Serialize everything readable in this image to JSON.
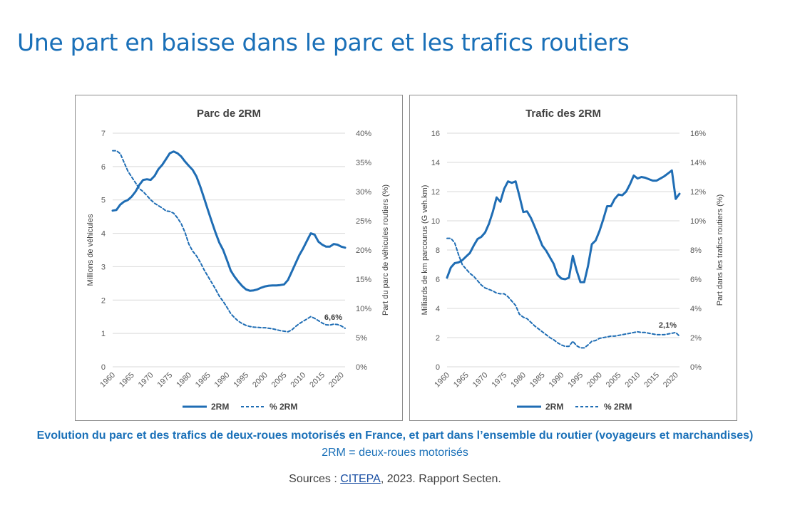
{
  "page": {
    "title": "Une part en baisse dans le parc et les trafics routiers",
    "caption": "Evolution du parc et des trafics de deux-roues motorisés en France, et part dans l’ensemble du routier (voyageurs et marchandises)",
    "caption_sub": "2RM = deux-roues motorisés",
    "sources_prefix": "Sources : ",
    "sources_link": "CITEPA",
    "sources_suffix": ", 2023. Rapport Secten."
  },
  "colors": {
    "accent": "#1a70b8",
    "series": "#1f6db4",
    "grid": "#d9d9d9",
    "axis_text": "#595959"
  },
  "chart_data": [
    {
      "type": "line",
      "title": "Parc de 2RM",
      "ylabel": "Millions de véhicules",
      "y2label": "Part du parc de véhicules routiers (%)",
      "xlabel": "",
      "xlim": [
        1960,
        2021
      ],
      "ylim": [
        0,
        7
      ],
      "y2lim": [
        0,
        40
      ],
      "x_ticks": [
        1960,
        1965,
        1970,
        1975,
        1980,
        1985,
        1990,
        1995,
        2000,
        2005,
        2010,
        2015,
        2020
      ],
      "y_ticks": [
        "0",
        "1",
        "2",
        "3",
        "4",
        "5",
        "6",
        "7"
      ],
      "y2_ticks": [
        "0%",
        "5%",
        "10%",
        "15%",
        "20%",
        "25%",
        "30%",
        "35%",
        "40%"
      ],
      "grid": true,
      "legend": [
        "2RM",
        "% 2RM"
      ],
      "annotation": {
        "label": "6,6%",
        "series": "% 2RM",
        "x": 2021
      },
      "series": [
        {
          "name": "2RM",
          "axis": "left",
          "style": "solid",
          "x": [
            1960,
            1961,
            1962,
            1963,
            1964,
            1965,
            1966,
            1967,
            1968,
            1969,
            1970,
            1971,
            1972,
            1973,
            1974,
            1975,
            1976,
            1977,
            1978,
            1979,
            1980,
            1981,
            1982,
            1983,
            1984,
            1985,
            1986,
            1987,
            1988,
            1989,
            1990,
            1991,
            1992,
            1993,
            1994,
            1995,
            1996,
            1997,
            1998,
            1999,
            2000,
            2001,
            2002,
            2003,
            2004,
            2005,
            2006,
            2007,
            2008,
            2009,
            2010,
            2011,
            2012,
            2013,
            2014,
            2015,
            2016,
            2017,
            2018,
            2019,
            2020,
            2021
          ],
          "values": [
            4.68,
            4.7,
            4.86,
            4.95,
            5.0,
            5.1,
            5.25,
            5.45,
            5.6,
            5.62,
            5.6,
            5.72,
            5.92,
            6.05,
            6.22,
            6.4,
            6.45,
            6.4,
            6.3,
            6.15,
            6.02,
            5.9,
            5.7,
            5.4,
            5.05,
            4.7,
            4.35,
            4.02,
            3.72,
            3.5,
            3.2,
            2.88,
            2.7,
            2.55,
            2.42,
            2.32,
            2.28,
            2.29,
            2.32,
            2.37,
            2.41,
            2.43,
            2.44,
            2.44,
            2.45,
            2.47,
            2.6,
            2.85,
            3.1,
            3.35,
            3.55,
            3.78,
            4.0,
            3.96,
            3.75,
            3.66,
            3.6,
            3.6,
            3.68,
            3.66,
            3.6,
            3.57
          ]
        },
        {
          "name": "% 2RM",
          "axis": "right",
          "style": "dashed",
          "x": [
            1960,
            1961,
            1962,
            1963,
            1964,
            1965,
            1966,
            1967,
            1968,
            1969,
            1970,
            1971,
            1972,
            1973,
            1974,
            1975,
            1976,
            1977,
            1978,
            1979,
            1980,
            1981,
            1982,
            1983,
            1984,
            1985,
            1986,
            1987,
            1988,
            1989,
            1990,
            1991,
            1992,
            1993,
            1994,
            1995,
            1996,
            1997,
            1998,
            1999,
            2000,
            2001,
            2002,
            2003,
            2004,
            2005,
            2006,
            2007,
            2008,
            2009,
            2010,
            2011,
            2012,
            2013,
            2014,
            2015,
            2016,
            2017,
            2018,
            2019,
            2020,
            2021
          ],
          "values": [
            37.0,
            37.0,
            36.5,
            35.0,
            33.5,
            32.5,
            31.5,
            30.5,
            30.0,
            29.3,
            28.6,
            28.0,
            27.6,
            27.2,
            26.7,
            26.6,
            26.3,
            25.5,
            24.5,
            23.0,
            21.0,
            19.8,
            19.0,
            17.9,
            16.6,
            15.5,
            14.4,
            13.3,
            12.1,
            11.2,
            10.2,
            9.1,
            8.4,
            7.8,
            7.4,
            7.1,
            6.9,
            6.8,
            6.75,
            6.7,
            6.7,
            6.6,
            6.5,
            6.35,
            6.2,
            6.1,
            6.0,
            6.3,
            6.9,
            7.4,
            7.8,
            8.2,
            8.6,
            8.3,
            7.9,
            7.5,
            7.2,
            7.15,
            7.3,
            7.25,
            7.0,
            6.6
          ]
        }
      ]
    },
    {
      "type": "line",
      "title": "Trafic des 2RM",
      "ylabel": "Milliards de km parcourus (G veh.km)",
      "y2label": "Part dans les trafics routiers (%)",
      "xlabel": "",
      "xlim": [
        1960,
        2021
      ],
      "ylim": [
        0,
        16
      ],
      "y2lim": [
        0,
        16
      ],
      "x_ticks": [
        1960,
        1965,
        1970,
        1975,
        1980,
        1985,
        1990,
        1995,
        2000,
        2005,
        2010,
        2015,
        2020
      ],
      "y_ticks": [
        "0",
        "2",
        "4",
        "6",
        "8",
        "10",
        "12",
        "14",
        "16"
      ],
      "y2_ticks": [
        "0%",
        "2%",
        "4%",
        "6%",
        "8%",
        "10%",
        "12%",
        "14%",
        "16%"
      ],
      "grid": true,
      "legend": [
        "2RM",
        "% 2RM"
      ],
      "annotation": {
        "label": "2,1%",
        "series": "% 2RM",
        "x": 2021
      },
      "series": [
        {
          "name": "2RM",
          "axis": "left",
          "style": "solid",
          "x": [
            1960,
            1961,
            1962,
            1963,
            1964,
            1965,
            1966,
            1967,
            1968,
            1969,
            1970,
            1971,
            1972,
            1973,
            1974,
            1975,
            1976,
            1977,
            1978,
            1979,
            1980,
            1981,
            1982,
            1983,
            1984,
            1985,
            1986,
            1987,
            1988,
            1989,
            1990,
            1991,
            1992,
            1993,
            1994,
            1995,
            1996,
            1997,
            1998,
            1999,
            2000,
            2001,
            2002,
            2003,
            2004,
            2005,
            2006,
            2007,
            2008,
            2009,
            2010,
            2011,
            2012,
            2013,
            2014,
            2015,
            2016,
            2017,
            2018,
            2019,
            2020,
            2021
          ],
          "values": [
            6.1,
            6.8,
            7.1,
            7.15,
            7.3,
            7.55,
            7.8,
            8.3,
            8.75,
            8.9,
            9.2,
            9.8,
            10.6,
            11.6,
            11.3,
            12.2,
            12.7,
            12.6,
            12.7,
            11.7,
            10.6,
            10.65,
            10.2,
            9.6,
            8.95,
            8.3,
            7.95,
            7.5,
            7.05,
            6.3,
            6.05,
            6.0,
            6.1,
            7.6,
            6.6,
            5.8,
            5.8,
            6.9,
            8.4,
            8.65,
            9.3,
            10.1,
            11.0,
            11.0,
            11.5,
            11.8,
            11.75,
            12.0,
            12.5,
            13.1,
            12.9,
            13.0,
            12.95,
            12.85,
            12.75,
            12.75,
            12.9,
            13.05,
            13.25,
            13.45,
            11.5,
            11.85
          ]
        },
        {
          "name": "% 2RM",
          "axis": "right",
          "style": "dashed",
          "x": [
            1960,
            1961,
            1962,
            1963,
            1964,
            1965,
            1966,
            1967,
            1968,
            1969,
            1970,
            1971,
            1972,
            1973,
            1974,
            1975,
            1976,
            1977,
            1978,
            1979,
            1980,
            1981,
            1982,
            1983,
            1984,
            1985,
            1986,
            1987,
            1988,
            1989,
            1990,
            1991,
            1992,
            1993,
            1994,
            1995,
            1996,
            1997,
            1998,
            1999,
            2000,
            2001,
            2002,
            2003,
            2004,
            2005,
            2006,
            2007,
            2008,
            2009,
            2010,
            2011,
            2012,
            2013,
            2014,
            2015,
            2016,
            2017,
            2018,
            2019,
            2020,
            2021
          ],
          "values": [
            8.8,
            8.8,
            8.5,
            7.7,
            7.0,
            6.7,
            6.4,
            6.2,
            5.9,
            5.6,
            5.4,
            5.3,
            5.2,
            5.05,
            5.0,
            5.0,
            4.8,
            4.5,
            4.2,
            3.6,
            3.4,
            3.3,
            3.05,
            2.8,
            2.6,
            2.4,
            2.2,
            2.0,
            1.85,
            1.65,
            1.5,
            1.4,
            1.4,
            1.75,
            1.45,
            1.3,
            1.3,
            1.5,
            1.75,
            1.8,
            1.95,
            2.0,
            2.05,
            2.1,
            2.1,
            2.15,
            2.2,
            2.25,
            2.3,
            2.35,
            2.4,
            2.35,
            2.35,
            2.3,
            2.25,
            2.2,
            2.2,
            2.2,
            2.25,
            2.3,
            2.35,
            2.1
          ]
        }
      ]
    }
  ]
}
